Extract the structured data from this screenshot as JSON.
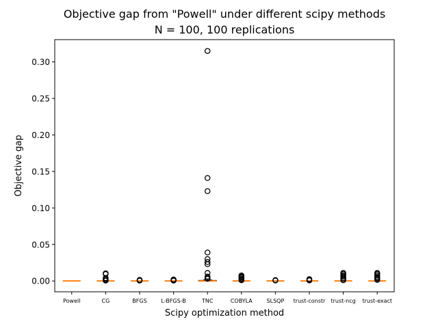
{
  "chart_data": {
    "type": "box",
    "title": "Objective gap from \"Powell\" under different scipy methods",
    "subtitle": "N = 100, 100 replications",
    "xlabel": "Scipy optimization method",
    "ylabel": "Objective gap",
    "ylim": [
      -0.0148,
      0.3305
    ],
    "yticks": [
      "0.00",
      "0.05",
      "0.10",
      "0.15",
      "0.20",
      "0.25",
      "0.30"
    ],
    "grid": false,
    "categories": [
      "Powell",
      "CG",
      "BFGS",
      "L-BFGS-B",
      "TNC",
      "COBYLA",
      "SLSQP",
      "trust-constr",
      "trust-ncg",
      "trust-exact"
    ],
    "median_color": "#ff7f0e",
    "box_color": "#000000",
    "series": [
      {
        "median": 0,
        "q1": 0,
        "q3": 0,
        "whislo": 0,
        "whishi": 0,
        "fliers": []
      },
      {
        "median": 0,
        "q1": 0,
        "q3": 0,
        "whislo": 0,
        "whishi": 0,
        "fliers": [
          0.0105,
          0.0095,
          0.004,
          0.003,
          0.0015,
          0.0005
        ]
      },
      {
        "median": 0,
        "q1": 0,
        "q3": 0,
        "whislo": 0,
        "whishi": 0,
        "fliers": [
          0.0015,
          0.001,
          0.0005
        ]
      },
      {
        "median": 0,
        "q1": 0,
        "q3": 0,
        "whislo": 0,
        "whishi": 0,
        "fliers": [
          0.002,
          0.0015,
          0.001,
          0.0005
        ]
      },
      {
        "median": 0,
        "q1": 0,
        "q3": 0.0008,
        "whislo": 0,
        "whishi": 0.0015,
        "fliers": [
          0.315,
          0.141,
          0.123,
          0.039,
          0.03,
          0.026,
          0.023,
          0.011,
          0.006,
          0.004,
          0.003
        ]
      },
      {
        "median": 0,
        "q1": 0,
        "q3": 0,
        "whislo": 0,
        "whishi": 0,
        "fliers": [
          0.0075,
          0.006,
          0.005,
          0.0035,
          0.002,
          0.001
        ]
      },
      {
        "median": 0,
        "q1": 0,
        "q3": 0,
        "whislo": 0,
        "whishi": 0,
        "fliers": [
          0.0012,
          0.0006
        ]
      },
      {
        "median": 0,
        "q1": 0,
        "q3": 0,
        "whislo": 0,
        "whishi": 0,
        "fliers": [
          0.0025,
          0.0015,
          0.0008
        ]
      },
      {
        "median": 0,
        "q1": 0,
        "q3": 0,
        "whislo": 0,
        "whishi": 0,
        "fliers": [
          0.011,
          0.0095,
          0.0075,
          0.006,
          0.004,
          0.0025,
          0.001
        ]
      },
      {
        "median": 0,
        "q1": 0,
        "q3": 0,
        "whislo": 0,
        "whishi": 0,
        "fliers": [
          0.011,
          0.0095,
          0.0075,
          0.0055,
          0.004,
          0.003,
          0.0015
        ]
      }
    ]
  }
}
